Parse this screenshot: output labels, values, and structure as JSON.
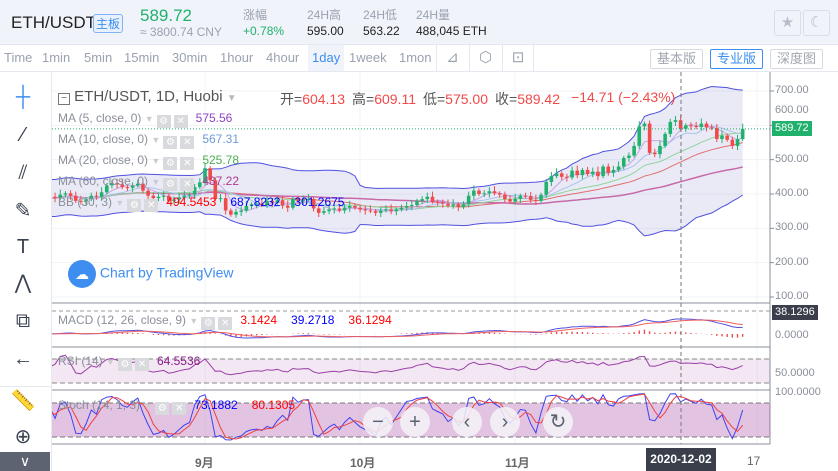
{
  "header": {
    "pair": "ETH/USDT",
    "board_badge": "主板",
    "price": "589.72",
    "cny": "≈ 3800.74 CNY",
    "stats": [
      {
        "label": "涨幅",
        "value": "+0.78%",
        "color": "#20b26c"
      },
      {
        "label": "24H高",
        "value": "595.00"
      },
      {
        "label": "24H低",
        "value": "563.22"
      },
      {
        "label": "24H量",
        "value": "488,045 ETH"
      }
    ],
    "favorite_icon": "star-icon",
    "theme_icon": "moon-icon"
  },
  "toolbar": {
    "intervals": [
      "Time",
      "1min",
      "5min",
      "15min",
      "30min",
      "1hour",
      "4hour",
      "1day",
      "1week",
      "1mon"
    ],
    "active_interval": "1day",
    "icons": [
      "chart-type-icon",
      "indicator-settings-icon",
      "screenshot-icon"
    ],
    "views": [
      "基本版",
      "专业版",
      "深度图"
    ],
    "active_view": "专业版"
  },
  "left_tools": [
    "crosshair-icon",
    "trend-line-icon",
    "fib-icon",
    "brush-icon",
    "text-icon",
    "pattern-icon",
    "measure-icon",
    "back-arrow-icon",
    "ruler-icon",
    "zoom-in-icon",
    "collapse-icon"
  ],
  "legend": {
    "title": "ETH/USDT, 1D, Huobi",
    "ohlc": [
      {
        "k": "开=",
        "v": "604.13"
      },
      {
        "k": "高=",
        "v": "609.11"
      },
      {
        "k": "低=",
        "v": "575.00"
      },
      {
        "k": "收=",
        "v": "589.42"
      }
    ],
    "change": "−14.71 (−2.43%)",
    "studies": [
      {
        "name": "MA (5, close, 0)",
        "vals": [
          "575.56"
        ],
        "colors": [
          "#8e44c4"
        ]
      },
      {
        "name": "MA (10, close, 0)",
        "vals": [
          "567.31"
        ],
        "colors": [
          "#6e9ad8"
        ]
      },
      {
        "name": "MA (20, close, 0)",
        "vals": [
          "525.78"
        ],
        "colors": [
          "#4caf50"
        ]
      },
      {
        "name": "MA (60, close, 0)",
        "vals": [
          "437.22"
        ],
        "colors": [
          "#b03a8a"
        ]
      },
      {
        "name": "BB (30, 3)",
        "vals": [
          "494.5453",
          "687.8232",
          "301.2675"
        ],
        "colors": [
          "#f00",
          "#00f",
          "#00f"
        ]
      }
    ]
  },
  "macd": {
    "name": "MACD (12, 26, close, 9)",
    "vals": [
      "3.1424",
      "39.2718",
      "36.1294"
    ],
    "colors": [
      "#f00",
      "#00f",
      "#f00"
    ]
  },
  "rsi": {
    "name": "RSI (14)",
    "vals": [
      "64.5536"
    ],
    "colors": [
      "#8b1f8b"
    ]
  },
  "stoch": {
    "name": "Stoch (14, 1, 3)",
    "vals": [
      "73.1882",
      "80.1305"
    ],
    "colors": [
      "#00f",
      "#f00"
    ]
  },
  "watermark": "Chart by TradingView",
  "price_axis": {
    "ticks": [
      "700.00",
      "600.00",
      "500.00",
      "400.00",
      "300.00",
      "200.00",
      "100.00"
    ],
    "last_price": "589.72",
    "macd_ticks": [
      "0.0000"
    ],
    "macd_last": "38.1296",
    "rsi_ticks": [
      "50.0000"
    ],
    "stoch_ticks": [
      "100.0000"
    ]
  },
  "time_axis": {
    "ticks": [
      "9月",
      "10月",
      "11月",
      "17"
    ],
    "crosshair_label": "2020-12-02"
  },
  "nav_buttons": [
    {
      "name": "zoom-out-button",
      "glyph": "−"
    },
    {
      "name": "zoom-in-button",
      "glyph": "+"
    },
    {
      "name": "scroll-left-button",
      "glyph": "‹"
    },
    {
      "name": "scroll-right-button",
      "glyph": "›"
    },
    {
      "name": "reset-button",
      "glyph": "↻"
    }
  ],
  "chart_data": {
    "type": "candlestick",
    "start": "2020-08-01",
    "end": "2020-12-14",
    "ylim": [
      100,
      700
    ],
    "up_color": "#20b26c",
    "down_color": "#f04a4a",
    "closes": [
      385,
      392,
      388,
      398,
      402,
      395,
      380,
      378,
      385,
      395,
      392,
      405,
      425,
      432,
      428,
      420,
      418,
      425,
      430,
      410,
      395,
      388,
      392,
      395,
      380,
      384,
      390,
      395,
      398,
      420,
      434,
      475,
      440,
      385,
      388,
      352,
      340,
      348,
      352,
      365,
      370,
      372,
      368,
      380,
      375,
      382,
      366,
      360,
      386,
      380,
      384,
      385,
      358,
      345,
      350,
      355,
      358,
      352,
      360,
      365,
      360,
      355,
      352,
      350,
      345,
      352,
      355,
      350,
      355,
      360,
      365,
      368,
      380,
      385,
      392,
      378,
      375,
      372,
      366,
      370,
      362,
      370,
      395,
      410,
      400,
      402,
      408,
      402,
      398,
      385,
      378,
      386,
      395,
      394,
      383,
      380,
      398,
      435,
      452,
      460,
      450,
      448,
      468,
      455,
      470,
      458,
      465,
      452,
      480,
      462,
      470,
      480,
      505,
      512,
      540,
      597,
      605,
      520,
      516,
      540,
      575,
      610,
      615,
      590,
      600,
      598,
      595,
      605,
      594,
      592,
      560,
      570,
      558,
      540,
      560,
      589.72
    ]
  }
}
